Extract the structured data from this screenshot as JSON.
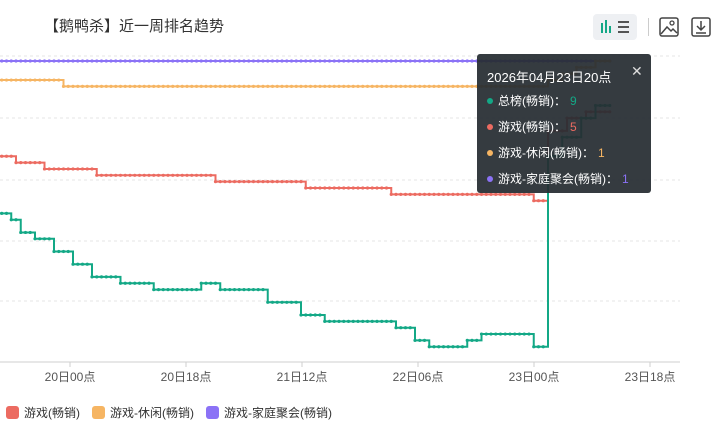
{
  "title": "【鹅鸭杀】近一周排名趋势",
  "colors": {
    "overall": "#13a886",
    "game": "#ec6b61",
    "casual": "#f6b563",
    "party": "#8b72f6"
  },
  "chart_data": {
    "type": "line",
    "x_ticks": [
      "20日00点",
      "20日18点",
      "21日12点",
      "22日06点",
      "23日00点",
      "23日18点"
    ],
    "series": [
      {
        "key": "overall",
        "name": "总榜(畅销)",
        "values": [
          25,
          25,
          25,
          26,
          26,
          28,
          28,
          28,
          29,
          29,
          29,
          29,
          31,
          31,
          31,
          31,
          33,
          33,
          33,
          33,
          35,
          35,
          35,
          35,
          35,
          35,
          36,
          36,
          36,
          36,
          36,
          36,
          36,
          37,
          37,
          37,
          37,
          37,
          37,
          37,
          37,
          37,
          37,
          36,
          36,
          36,
          36,
          37,
          37,
          37,
          37,
          37,
          37,
          37,
          37,
          37,
          37,
          39,
          39,
          39,
          39,
          39,
          39,
          39,
          41,
          41,
          41,
          41,
          41,
          42,
          42,
          42,
          42,
          42,
          42,
          42,
          42,
          42,
          42,
          42,
          42,
          42,
          42,
          42,
          43,
          43,
          43,
          43,
          45,
          45,
          45,
          46,
          46,
          46,
          46,
          46,
          46,
          46,
          46,
          45,
          45,
          45,
          44,
          44,
          44,
          44,
          44,
          44,
          44,
          44,
          44,
          44,
          44,
          46,
          46,
          46,
          16,
          16,
          16,
          13,
          13,
          13,
          13,
          10,
          10,
          10,
          8,
          8,
          8,
          8
        ]
      },
      {
        "key": "game",
        "name": "游戏(畅销)",
        "values": [
          16,
          16,
          16,
          16,
          17,
          17,
          17,
          17,
          17,
          17,
          18,
          18,
          18,
          18,
          18,
          18,
          18,
          18,
          18,
          18,
          18,
          19,
          19,
          19,
          19,
          19,
          19,
          19,
          19,
          19,
          19,
          19,
          19,
          19,
          19,
          19,
          19,
          19,
          19,
          19,
          19,
          19,
          19,
          19,
          19,
          19,
          20,
          20,
          20,
          20,
          20,
          20,
          20,
          20,
          20,
          20,
          20,
          20,
          20,
          20,
          20,
          20,
          20,
          20,
          20,
          21,
          21,
          21,
          21,
          21,
          21,
          21,
          21,
          21,
          21,
          21,
          21,
          21,
          21,
          21,
          21,
          21,
          21,
          22,
          22,
          22,
          22,
          22,
          22,
          22,
          22,
          22,
          22,
          22,
          22,
          22,
          22,
          22,
          22,
          22,
          22,
          22,
          22,
          22,
          22,
          22,
          22,
          22,
          22,
          22,
          22,
          22,
          22,
          23,
          23,
          23,
          12,
          12,
          12,
          12,
          10,
          10,
          10,
          10,
          9,
          9,
          9,
          9,
          9,
          9
        ]
      },
      {
        "key": "casual",
        "name": "游戏-休闲(畅销)",
        "values": [
          4,
          4,
          4,
          4,
          4,
          4,
          4,
          4,
          4,
          4,
          4,
          4,
          4,
          4,
          5,
          5,
          5,
          5,
          5,
          5,
          5,
          5,
          5,
          5,
          5,
          5,
          5,
          5,
          5,
          5,
          5,
          5,
          5,
          5,
          5,
          5,
          5,
          5,
          5,
          5,
          5,
          5,
          5,
          5,
          5,
          5,
          5,
          5,
          5,
          5,
          5,
          5,
          5,
          5,
          5,
          5,
          5,
          5,
          5,
          5,
          5,
          5,
          5,
          5,
          5,
          5,
          5,
          5,
          5,
          5,
          5,
          5,
          5,
          5,
          5,
          5,
          5,
          5,
          5,
          5,
          5,
          5,
          5,
          5,
          5,
          5,
          5,
          5,
          5,
          5,
          5,
          5,
          5,
          5,
          5,
          5,
          5,
          5,
          5,
          5,
          5,
          5,
          5,
          5,
          5,
          5,
          5,
          5,
          5,
          5,
          5,
          5,
          5,
          5,
          5,
          5,
          4,
          4,
          4,
          3,
          3,
          3,
          2,
          2,
          2,
          2,
          1,
          1,
          1,
          1
        ]
      },
      {
        "key": "party",
        "name": "游戏-家庭聚会(畅销)",
        "values": [
          1,
          1,
          1,
          1,
          1,
          1,
          1,
          1,
          1,
          1,
          1,
          1,
          1,
          1,
          1,
          1,
          1,
          1,
          1,
          1,
          1,
          1,
          1,
          1,
          1,
          1,
          1,
          1,
          1,
          1,
          1,
          1,
          1,
          1,
          1,
          1,
          1,
          1,
          1,
          1,
          1,
          1,
          1,
          1,
          1,
          1,
          1,
          1,
          1,
          1,
          1,
          1,
          1,
          1,
          1,
          1,
          1,
          1,
          1,
          1,
          1,
          1,
          1,
          1,
          1,
          1,
          1,
          1,
          1,
          1,
          1,
          1,
          1,
          1,
          1,
          1,
          1,
          1,
          1,
          1,
          1,
          1,
          1,
          1,
          1,
          1,
          1,
          1,
          1,
          1,
          1,
          1,
          1,
          1,
          1,
          1,
          1,
          1,
          1,
          1,
          1,
          1,
          1,
          1,
          1,
          1,
          1,
          1,
          1,
          1,
          1,
          1,
          1,
          1,
          1,
          1,
          1,
          1,
          1,
          1,
          1,
          1,
          1,
          1,
          1,
          1,
          1,
          1,
          1,
          1
        ]
      }
    ],
    "legend": [
      "游戏(畅销)",
      "游戏-休闲(畅销)",
      "游戏-家庭聚会(畅销)"
    ],
    "tooltip": {
      "title": "2026年04月23日20点",
      "rows": [
        {
          "key": "overall",
          "label": "总榜(畅销)：",
          "value": "9"
        },
        {
          "key": "game",
          "label": "游戏(畅销)：",
          "value": "5"
        },
        {
          "key": "casual",
          "label": "游戏-休闲(畅销)：",
          "value": "1"
        },
        {
          "key": "party",
          "label": "游戏-家庭聚会(畅销)：",
          "value": "1"
        }
      ]
    },
    "grid": true
  }
}
